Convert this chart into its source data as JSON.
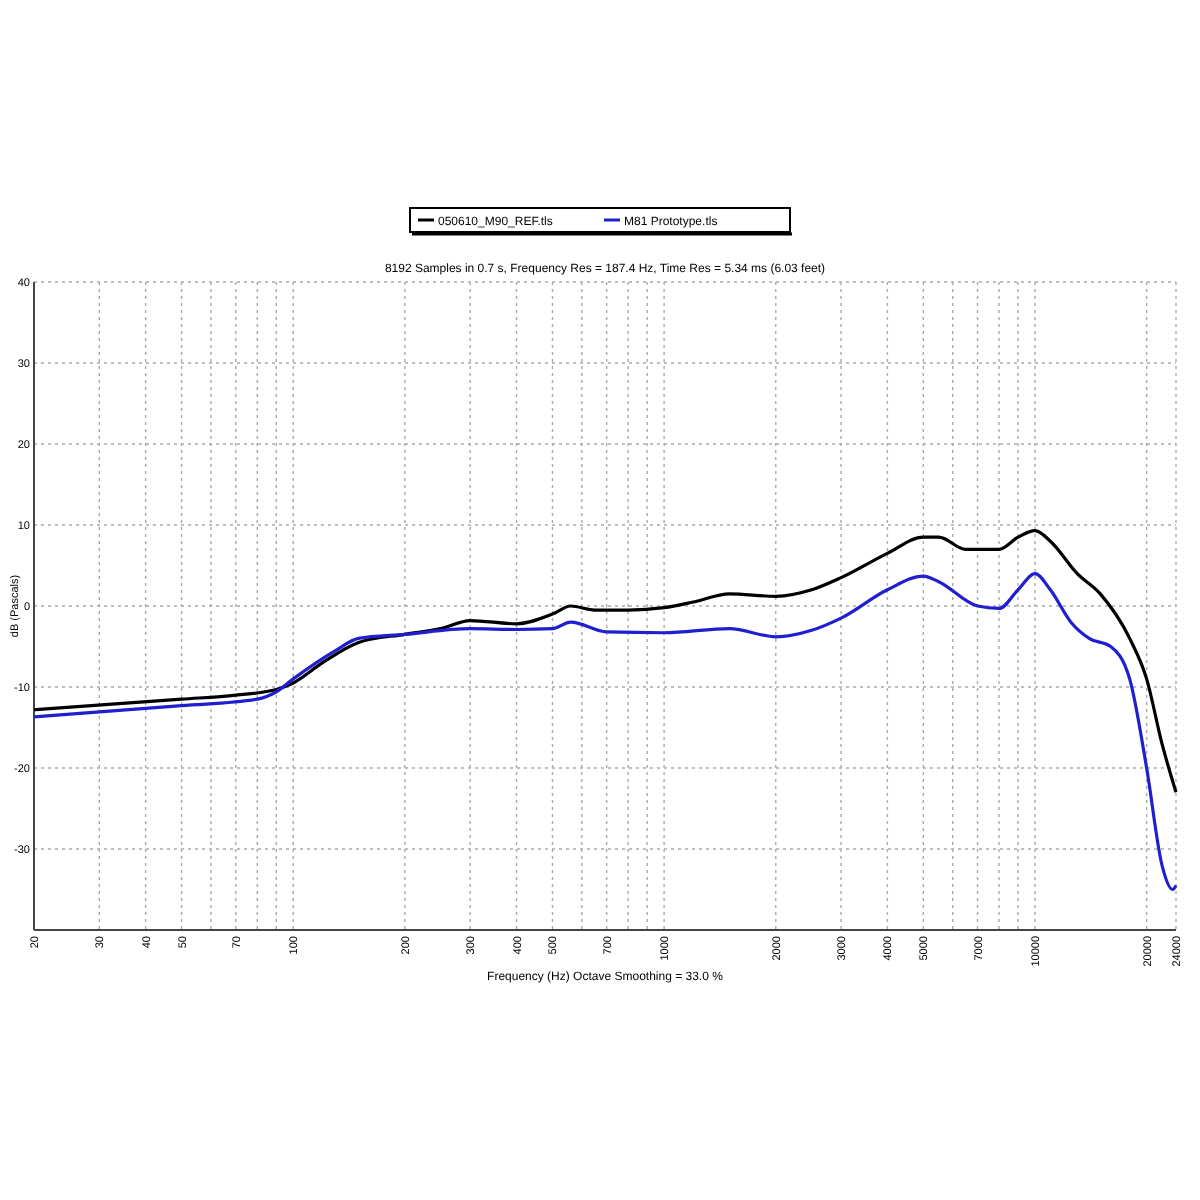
{
  "chart_data": {
    "type": "line",
    "title": "8192 Samples in 0.7 s, Frequency Res = 187.4 Hz, Time Res = 5.34 ms (6.03 feet)",
    "xlabel": "Frequency (Hz) Octave Smoothing = 33.0 %",
    "ylabel": "dB (Pascals)",
    "log": "x",
    "grid": true,
    "legend": "top",
    "line_style": "solid",
    "marker": "none",
    "xlim": [
      20,
      24000
    ],
    "ylim": [
      -40,
      40
    ],
    "xticks": [
      20,
      30,
      40,
      50,
      {
        "value": 60,
        "label": null
      },
      70,
      {
        "value": 80,
        "label": null
      },
      {
        "value": 90,
        "label": null
      },
      100,
      200,
      300,
      400,
      500,
      {
        "value": 600,
        "label": null
      },
      700,
      {
        "value": 800,
        "label": null
      },
      {
        "value": 900,
        "label": null
      },
      1000,
      2000,
      3000,
      4000,
      5000,
      {
        "value": 6000,
        "label": null
      },
      7000,
      {
        "value": 8000,
        "label": null
      },
      {
        "value": 9000,
        "label": null
      },
      10000,
      20000,
      24000
    ],
    "yticks": [
      {
        "value": -40,
        "label": null
      },
      -30,
      -20,
      -10,
      0,
      10,
      20,
      30,
      40
    ],
    "series": [
      {
        "name": "050610_M90_REF.tls",
        "color": "#000000",
        "x": [
          20,
          50,
          70,
          90,
          100,
          120,
          150,
          200,
          250,
          300,
          400,
          500,
          560,
          650,
          800,
          1000,
          1200,
          1500,
          2000,
          2500,
          3000,
          4000,
          5000,
          5500,
          6500,
          8000,
          9000,
          10000,
          11000,
          13000,
          15000,
          18000,
          20000,
          22000,
          24000
        ],
        "values": [
          -12.8,
          -11.5,
          -11,
          -10.3,
          -9.5,
          -7,
          -4.5,
          -3.5,
          -2.8,
          -1.8,
          -2.2,
          -1,
          0,
          -0.5,
          -0.5,
          -0.2,
          0.5,
          1.5,
          1.2,
          2,
          3.5,
          6.5,
          8.5,
          8.5,
          7,
          7,
          8.5,
          9.3,
          8,
          4,
          1.5,
          -4,
          -9,
          -17,
          -23
        ]
      },
      {
        "name": "M81 Prototype.tls",
        "color": "#1f1fd0",
        "x": [
          20,
          50,
          80,
          90,
          100,
          130,
          150,
          200,
          300,
          400,
          500,
          560,
          700,
          1000,
          1500,
          2000,
          2500,
          3000,
          4000,
          5000,
          5500,
          7000,
          8000,
          9000,
          10000,
          11000,
          12500,
          14000,
          16000,
          18000,
          20000,
          22000,
          23500,
          24000
        ],
        "values": [
          -13.7,
          -12.3,
          -11.5,
          -10.6,
          -9,
          -5.5,
          -4,
          -3.5,
          -2.8,
          -2.9,
          -2.8,
          -2,
          -3.2,
          -3.3,
          -2.8,
          -3.8,
          -3,
          -1.5,
          2,
          3.7,
          3,
          0,
          -0.3,
          2,
          4,
          2,
          -2,
          -4,
          -5,
          -9,
          -20,
          -32,
          -35,
          -34.5
        ]
      }
    ]
  }
}
